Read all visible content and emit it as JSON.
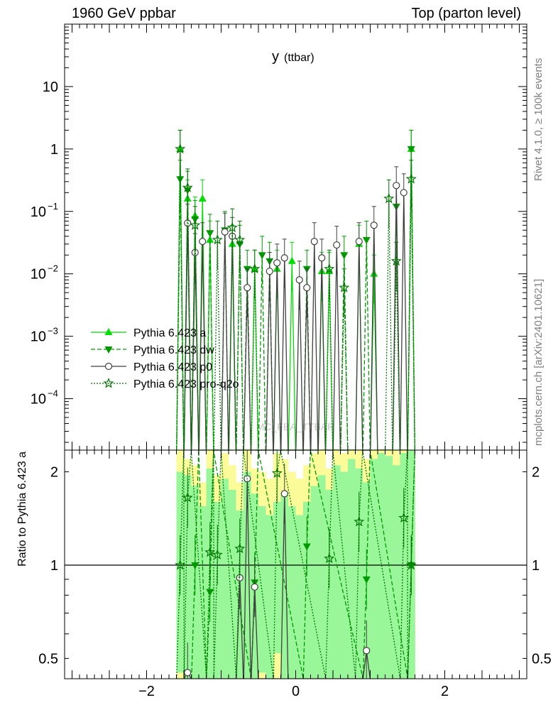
{
  "header": {
    "left": "1960 GeV ppbar",
    "right": "Top (parton level)"
  },
  "side_labels": {
    "rivet": "Rivet 4.1.0, ≥ 100k events",
    "source": "mcplots.cern.ch [arXiv:2401.10621]"
  },
  "colors": {
    "a": "#00dd00",
    "dw": "#009900",
    "p0": "#404040",
    "proq2o": "#007700",
    "band_green": "#99f799",
    "band_yellow": "#fbfb99"
  },
  "chart_data": [
    {
      "type": "line",
      "title": "y (ttbar)",
      "title_main": "y",
      "title_sub": "(ttbar)",
      "watermark": "MC_FBA_TTBAR",
      "xlabel": "",
      "ylabel": "",
      "xlim": [
        -3.1,
        3.1
      ],
      "ylim": [
        1.5e-05,
        100
      ],
      "yscale": "log",
      "yticks": [
        {
          "value": 10,
          "label": "10"
        },
        {
          "value": 1,
          "label": "1"
        },
        {
          "value": 0.1,
          "label": "10−1"
        },
        {
          "value": 0.01,
          "label": "10−2"
        },
        {
          "value": 0.001,
          "label": "10−3"
        },
        {
          "value": 0.0001,
          "label": "10−4"
        }
      ],
      "legend": [
        "Pythia 6.423 a",
        "Pythia 6.423 dw",
        "Pythia 6.423 p0",
        "Pythia 6.423 pro-q2o"
      ],
      "series": [
        {
          "name": "Pythia 6.423 a",
          "style": "solid",
          "marker": "triangle-up",
          "color_key": "a",
          "points": [
            {
              "x": -1.55,
              "y": 1.0
            },
            {
              "x": -1.45,
              "y": 0.16
            },
            {
              "x": -1.35,
              "y": 0.085
            },
            {
              "x": -1.25,
              "y": 0.16
            },
            {
              "x": -1.15,
              "y": 0.035
            },
            {
              "x": -0.85,
              "y": 0.03
            },
            {
              "x": -0.55,
              "y": 0.012
            },
            {
              "x": -0.25,
              "y": 0.012
            },
            {
              "x": -0.05,
              "y": 0.016
            },
            {
              "x": 0.35,
              "y": 0.011
            },
            {
              "x": 0.45,
              "y": 0.011
            },
            {
              "x": 0.85,
              "y": 0.03
            },
            {
              "x": 1.05,
              "y": 0.01
            },
            {
              "x": 1.55,
              "y": 1.0
            }
          ]
        },
        {
          "name": "Pythia 6.423 dw",
          "style": "dashed",
          "marker": "triangle-down",
          "color_key": "dw",
          "points": [
            {
              "x": -1.55,
              "y": 0.33
            },
            {
              "x": -1.45,
              "y": 0.22
            },
            {
              "x": -1.35,
              "y": 0.075
            },
            {
              "x": -1.15,
              "y": 0.045
            },
            {
              "x": -0.95,
              "y": 0.05
            },
            {
              "x": -0.75,
              "y": 0.03
            },
            {
              "x": -0.65,
              "y": 0.012
            },
            {
              "x": -0.45,
              "y": 0.02
            },
            {
              "x": -0.35,
              "y": 0.016
            },
            {
              "x": 0.15,
              "y": 0.012
            },
            {
              "x": 0.65,
              "y": 0.02
            },
            {
              "x": 0.95,
              "y": 0.035
            },
            {
              "x": 1.35,
              "y": 0.12
            },
            {
              "x": 1.55,
              "y": 1.0
            }
          ]
        },
        {
          "name": "Pythia 6.423 p0",
          "style": "solid",
          "marker": "circle-open",
          "color_key": "p0",
          "points": [
            {
              "x": -1.45,
              "y": 0.065
            },
            {
              "x": -1.35,
              "y": 0.022
            },
            {
              "x": -1.25,
              "y": 0.033
            },
            {
              "x": -0.95,
              "y": 0.047
            },
            {
              "x": -0.85,
              "y": 0.04
            },
            {
              "x": -0.65,
              "y": 0.006
            },
            {
              "x": -0.35,
              "y": 0.011
            },
            {
              "x": -0.25,
              "y": 0.015
            },
            {
              "x": -0.15,
              "y": 0.018
            },
            {
              "x": 0.05,
              "y": 0.008
            },
            {
              "x": 0.15,
              "y": 0.006
            },
            {
              "x": 0.25,
              "y": 0.033
            },
            {
              "x": 0.35,
              "y": 0.018
            },
            {
              "x": 0.55,
              "y": 0.029
            },
            {
              "x": 0.85,
              "y": 0.033
            },
            {
              "x": 1.05,
              "y": 0.06
            },
            {
              "x": 1.35,
              "y": 0.26
            },
            {
              "x": 1.45,
              "y": 0.2
            }
          ]
        },
        {
          "name": "Pythia 6.423 pro-q2o",
          "style": "dotted",
          "marker": "star-open",
          "color_key": "proq2o",
          "points": [
            {
              "x": -1.55,
              "y": 1.0
            },
            {
              "x": -1.45,
              "y": 0.24
            },
            {
              "x": -1.35,
              "y": 0.06
            },
            {
              "x": -1.05,
              "y": 0.035
            },
            {
              "x": -0.85,
              "y": 0.055
            },
            {
              "x": -0.75,
              "y": 0.035
            },
            {
              "x": -0.55,
              "y": 0.012
            },
            {
              "x": 0.45,
              "y": 0.012
            },
            {
              "x": 0.65,
              "y": 0.006
            },
            {
              "x": 1.25,
              "y": 0.16
            },
            {
              "x": 1.35,
              "y": 0.016
            },
            {
              "x": 1.55,
              "y": 0.33
            }
          ]
        }
      ]
    },
    {
      "type": "line",
      "title": "",
      "xlabel": "",
      "ylabel": "Ratio to Pythia 6.423 a",
      "xlim": [
        -3.1,
        3.1
      ],
      "ylim": [
        0.43,
        2.35
      ],
      "yscale": "log",
      "yticks": [
        {
          "value": 2,
          "label": "2"
        },
        {
          "value": 1,
          "label": "1"
        },
        {
          "value": 0.5,
          "label": "0.5"
        }
      ],
      "xticks": [
        {
          "value": -2,
          "label": "−2"
        },
        {
          "value": 0,
          "label": "0"
        },
        {
          "value": 2,
          "label": "2"
        }
      ],
      "reference_line": 1,
      "bands": [
        {
          "x": [
            -1.6,
            -1.5
          ],
          "green": [
            0.45,
            2.0
          ],
          "yellow": [
            0.43,
            2.35
          ]
        },
        {
          "x": [
            -1.5,
            -1.4
          ],
          "green": [
            0.43,
            1.95
          ],
          "yellow": [
            0.43,
            2.2
          ]
        },
        {
          "x": [
            -1.4,
            -1.3
          ],
          "green": [
            0.43,
            1.8
          ],
          "yellow": [
            0.43,
            2.1
          ]
        },
        {
          "x": [
            -1.3,
            -1.2
          ],
          "green": [
            0.43,
            1.55
          ],
          "yellow": [
            0.45,
            1.85
          ]
        },
        {
          "x": [
            -1.2,
            -1.1
          ],
          "green": [
            0.43,
            2.05
          ],
          "yellow": [
            0.43,
            2.35
          ]
        },
        {
          "x": [
            -1.1,
            -1.0
          ],
          "green": [
            0.43,
            1.6
          ],
          "yellow": [
            0.43,
            1.95
          ]
        },
        {
          "x": [
            -1.0,
            -0.9
          ],
          "green": [
            0.43,
            1.9
          ],
          "yellow": [
            0.43,
            2.3
          ]
        },
        {
          "x": [
            -0.9,
            -0.8
          ],
          "green": [
            0.43,
            1.75
          ],
          "yellow": [
            0.43,
            2.1
          ]
        },
        {
          "x": [
            -0.8,
            -0.7
          ],
          "green": [
            0.43,
            1.5
          ],
          "yellow": [
            0.43,
            1.85
          ]
        },
        {
          "x": [
            -0.7,
            -0.6
          ],
          "green": [
            0.43,
            2.0
          ],
          "yellow": [
            0.43,
            2.35
          ]
        },
        {
          "x": [
            -0.6,
            -0.5
          ],
          "green": [
            0.43,
            1.7
          ],
          "yellow": [
            0.43,
            2.05
          ]
        },
        {
          "x": [
            -0.5,
            -0.4
          ],
          "green": [
            0.45,
            1.55
          ],
          "yellow": [
            0.43,
            2.0
          ]
        },
        {
          "x": [
            -0.4,
            -0.3
          ],
          "green": [
            0.43,
            1.45
          ],
          "yellow": [
            0.43,
            1.9
          ]
        },
        {
          "x": [
            -0.3,
            -0.2
          ],
          "green": [
            0.52,
            1.6
          ],
          "yellow": [
            0.43,
            2.3
          ]
        },
        {
          "x": [
            -0.2,
            -0.1
          ],
          "green": [
            0.43,
            1.7
          ],
          "yellow": [
            0.43,
            2.2
          ]
        },
        {
          "x": [
            -0.1,
            0.0
          ],
          "green": [
            0.43,
            1.55
          ],
          "yellow": [
            0.43,
            2.0
          ]
        },
        {
          "x": [
            0.0,
            0.1
          ],
          "green": [
            0.43,
            1.45
          ],
          "yellow": [
            0.43,
            1.9
          ]
        },
        {
          "x": [
            0.1,
            0.2
          ],
          "green": [
            0.43,
            1.6
          ],
          "yellow": [
            0.43,
            2.1
          ]
        },
        {
          "x": [
            0.2,
            0.3
          ],
          "green": [
            0.43,
            1.8
          ],
          "yellow": [
            0.43,
            2.3
          ]
        },
        {
          "x": [
            0.3,
            0.4
          ],
          "green": [
            0.43,
            1.95
          ],
          "yellow": [
            0.43,
            2.35
          ]
        },
        {
          "x": [
            0.4,
            0.5
          ],
          "green": [
            0.43,
            1.75
          ],
          "yellow": [
            0.43,
            2.05
          ]
        },
        {
          "x": [
            0.5,
            0.6
          ],
          "green": [
            0.43,
            2.1
          ],
          "yellow": [
            0.43,
            2.35
          ]
        },
        {
          "x": [
            0.6,
            0.7
          ],
          "green": [
            0.43,
            2.0
          ],
          "yellow": [
            0.43,
            2.3
          ]
        },
        {
          "x": [
            0.7,
            0.8
          ],
          "green": [
            0.43,
            2.2
          ],
          "yellow": [
            0.43,
            2.35
          ]
        },
        {
          "x": [
            0.8,
            0.9
          ],
          "green": [
            0.43,
            2.05
          ],
          "yellow": [
            0.43,
            2.35
          ]
        },
        {
          "x": [
            0.9,
            1.0
          ],
          "green": [
            0.43,
            1.85
          ],
          "yellow": [
            0.43,
            2.2
          ]
        },
        {
          "x": [
            1.0,
            1.1
          ],
          "green": [
            0.43,
            2.2
          ],
          "yellow": [
            0.43,
            2.35
          ]
        },
        {
          "x": [
            1.1,
            1.2
          ],
          "green": [
            0.43,
            2.3
          ],
          "yellow": [
            0.43,
            2.35
          ]
        },
        {
          "x": [
            1.2,
            1.3
          ],
          "green": [
            0.43,
            2.25
          ],
          "yellow": [
            0.43,
            2.35
          ]
        },
        {
          "x": [
            1.3,
            1.4
          ],
          "green": [
            0.43,
            2.1
          ],
          "yellow": [
            0.43,
            2.35
          ]
        },
        {
          "x": [
            1.4,
            1.5
          ],
          "green": [
            0.43,
            2.3
          ],
          "yellow": [
            0.43,
            2.35
          ]
        },
        {
          "x": [
            1.5,
            1.6
          ],
          "green": [
            0.43,
            2.35
          ],
          "yellow": [
            0.43,
            2.35
          ]
        }
      ],
      "series": [
        {
          "name": "Pythia 6.423 a",
          "style": "solid",
          "marker": "none",
          "color_key": "a",
          "points": [
            {
              "x": -3.1,
              "y": 1
            },
            {
              "x": 3.1,
              "y": 1
            }
          ]
        },
        {
          "name": "Pythia 6.423 dw",
          "style": "dashed",
          "marker": "triangle-down",
          "color_key": "dw",
          "points": [
            {
              "x": -1.35,
              "y": 1.0
            },
            {
              "x": -1.15,
              "y": 0.82
            },
            {
              "x": -0.55,
              "y": 0.88
            },
            {
              "x": 0.15,
              "y": 1.15
            },
            {
              "x": 0.95,
              "y": 0.9
            },
            {
              "x": 1.55,
              "y": 1.0
            }
          ]
        },
        {
          "name": "Pythia 6.423 p0",
          "style": "solid",
          "marker": "circle-open",
          "color_key": "p0",
          "points": [
            {
              "x": -1.45,
              "y": 0.45
            },
            {
              "x": -0.75,
              "y": 0.91
            },
            {
              "x": -0.65,
              "y": 1.9
            },
            {
              "x": -0.55,
              "y": 0.85
            },
            {
              "x": -0.15,
              "y": 1.7
            },
            {
              "x": 0.95,
              "y": 0.53
            }
          ]
        },
        {
          "name": "Pythia 6.423 pro-q2o",
          "style": "dotted",
          "marker": "star-open",
          "color_key": "proq2o",
          "points": [
            {
              "x": -1.55,
              "y": 1.0
            },
            {
              "x": -1.45,
              "y": 1.65
            },
            {
              "x": -1.15,
              "y": 1.1
            },
            {
              "x": -1.05,
              "y": 1.08
            },
            {
              "x": -0.75,
              "y": 1.13
            },
            {
              "x": -0.25,
              "y": 1.98
            },
            {
              "x": 0.45,
              "y": 1.05
            },
            {
              "x": 0.85,
              "y": 1.38
            },
            {
              "x": 1.45,
              "y": 1.42
            },
            {
              "x": 1.55,
              "y": 1.0
            }
          ]
        }
      ]
    }
  ]
}
